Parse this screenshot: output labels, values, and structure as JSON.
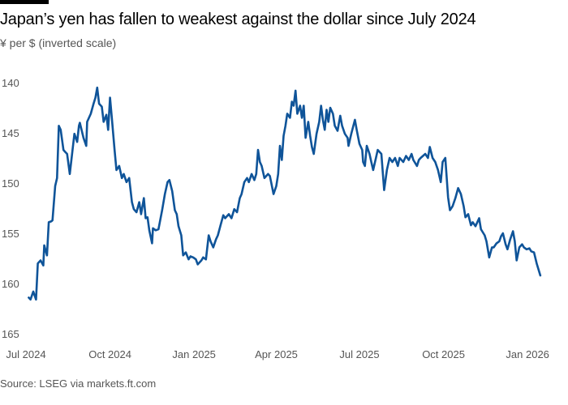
{
  "header": {
    "title": "Japan’s yen has fallen to weakest against the dollar since July 2024",
    "subtitle": "¥ per $ (inverted scale)"
  },
  "footer": {
    "source": "Source: LSEG via markets.ft.com"
  },
  "chart_data": {
    "type": "line",
    "title": "Japan’s yen has fallen to weakest against the dollar since July 2024",
    "ylabel": "¥ per $ (inverted scale)",
    "xlabel": "",
    "x_units": "days since 2024-07-01",
    "ylim": [
      140,
      165
    ],
    "y_inverted": true,
    "yticks": [
      140,
      145,
      150,
      155,
      160,
      165
    ],
    "xticks": [
      {
        "label": "Jul 2024",
        "day": 0
      },
      {
        "label": "Oct 2024",
        "day": 92
      },
      {
        "label": "Jan 2025",
        "day": 184
      },
      {
        "label": "Apr 2025",
        "day": 274
      },
      {
        "label": "Jul 2025",
        "day": 365
      },
      {
        "label": "Oct 2025",
        "day": 457
      },
      {
        "label": "Jan 2026",
        "day": 549
      }
    ],
    "grid": false,
    "line_color": "#0f5499",
    "series": [
      {
        "name": "¥ per $",
        "points": [
          [
            3,
            161.4
          ],
          [
            5,
            161.6
          ],
          [
            8,
            160.8
          ],
          [
            11,
            161.6
          ],
          [
            13,
            158.0
          ],
          [
            16,
            157.7
          ],
          [
            19,
            158.2
          ],
          [
            20,
            156.2
          ],
          [
            23,
            157.2
          ],
          [
            25,
            153.9
          ],
          [
            28,
            153.8
          ],
          [
            29,
            153.7
          ],
          [
            32,
            150.3
          ],
          [
            34,
            149.5
          ],
          [
            36,
            144.3
          ],
          [
            38,
            144.7
          ],
          [
            41,
            146.7
          ],
          [
            43,
            146.9
          ],
          [
            45,
            147.1
          ],
          [
            48,
            149.1
          ],
          [
            51,
            146.7
          ],
          [
            53,
            145.1
          ],
          [
            56,
            145.9
          ],
          [
            58,
            144.3
          ],
          [
            59,
            144.0
          ],
          [
            63,
            145.5
          ],
          [
            66,
            146.3
          ],
          [
            67,
            143.9
          ],
          [
            71,
            143.1
          ],
          [
            74,
            142.1
          ],
          [
            76,
            141.5
          ],
          [
            78,
            140.5
          ],
          [
            80,
            142.1
          ],
          [
            83,
            142.4
          ],
          [
            85,
            143.9
          ],
          [
            88,
            143.2
          ],
          [
            90,
            144.7
          ],
          [
            92,
            141.5
          ],
          [
            94,
            143.5
          ],
          [
            97,
            146.7
          ],
          [
            99,
            148.7
          ],
          [
            102,
            148.3
          ],
          [
            105,
            149.5
          ],
          [
            107,
            149.1
          ],
          [
            110,
            149.9
          ],
          [
            113,
            149.5
          ],
          [
            116,
            151.9
          ],
          [
            118,
            152.6
          ],
          [
            121,
            152.9
          ],
          [
            124,
            151.9
          ],
          [
            126,
            153.1
          ],
          [
            129,
            151.5
          ],
          [
            131,
            153.5
          ],
          [
            133,
            153.4
          ],
          [
            135,
            154.7
          ],
          [
            138,
            156.0
          ],
          [
            139,
            154.5
          ],
          [
            142,
            154.7
          ],
          [
            145,
            154.6
          ],
          [
            149,
            152.7
          ],
          [
            152,
            151.1
          ],
          [
            155,
            149.9
          ],
          [
            157,
            149.7
          ],
          [
            160,
            150.8
          ],
          [
            163,
            152.7
          ],
          [
            165,
            153.1
          ],
          [
            167,
            154.3
          ],
          [
            170,
            155.2
          ],
          [
            172,
            157.2
          ],
          [
            175,
            156.9
          ],
          [
            178,
            157.6
          ],
          [
            180,
            157.3
          ],
          [
            183,
            157.4
          ],
          [
            186,
            157.6
          ],
          [
            188,
            158.1
          ],
          [
            192,
            157.7
          ],
          [
            194,
            157.4
          ],
          [
            197,
            157.6
          ],
          [
            200,
            155.2
          ],
          [
            202,
            155.8
          ],
          [
            205,
            156.4
          ],
          [
            208,
            155.6
          ],
          [
            210,
            155.2
          ],
          [
            213,
            154.2
          ],
          [
            216,
            153.2
          ],
          [
            218,
            153.5
          ],
          [
            222,
            153.1
          ],
          [
            225,
            153.5
          ],
          [
            228,
            152.6
          ],
          [
            231,
            152.9
          ],
          [
            234,
            151.5
          ],
          [
            236,
            151.1
          ],
          [
            239,
            149.9
          ],
          [
            242,
            149.5
          ],
          [
            244,
            149.9
          ],
          [
            247,
            149.1
          ],
          [
            250,
            149.7
          ],
          [
            252,
            149.1
          ],
          [
            254,
            146.7
          ],
          [
            256,
            147.9
          ],
          [
            258,
            148.3
          ],
          [
            261,
            149.5
          ],
          [
            265,
            149.1
          ],
          [
            267,
            149.3
          ],
          [
            271,
            151.1
          ],
          [
            274,
            150.3
          ],
          [
            276,
            149.1
          ],
          [
            278,
            146.3
          ],
          [
            280,
            147.7
          ],
          [
            282,
            145.3
          ],
          [
            284,
            144.3
          ],
          [
            286,
            143.1
          ],
          [
            289,
            143.5
          ],
          [
            291,
            141.9
          ],
          [
            293,
            142.3
          ],
          [
            295,
            140.8
          ],
          [
            297,
            143.1
          ],
          [
            300,
            142.3
          ],
          [
            302,
            143.5
          ],
          [
            304,
            142.3
          ],
          [
            306,
            145.5
          ],
          [
            309,
            143.9
          ],
          [
            311,
            145.3
          ],
          [
            313,
            146.4
          ],
          [
            315,
            147.1
          ],
          [
            318,
            145.1
          ],
          [
            321,
            143.9
          ],
          [
            323,
            142.3
          ],
          [
            325,
            143.7
          ],
          [
            327,
            144.7
          ],
          [
            329,
            142.7
          ],
          [
            331,
            143.9
          ],
          [
            333,
            142.5
          ],
          [
            336,
            143.1
          ],
          [
            338,
            144.3
          ],
          [
            341,
            144.8
          ],
          [
            344,
            143.3
          ],
          [
            346,
            144.3
          ],
          [
            349,
            145.1
          ],
          [
            352,
            145.5
          ],
          [
            353,
            146.3
          ],
          [
            356,
            145.1
          ],
          [
            360,
            143.7
          ],
          [
            362,
            144.7
          ],
          [
            365,
            146.1
          ],
          [
            368,
            146.7
          ],
          [
            369,
            147.9
          ],
          [
            371,
            148.3
          ],
          [
            373,
            146.3
          ],
          [
            376,
            147.1
          ],
          [
            378,
            147.9
          ],
          [
            380,
            148.7
          ],
          [
            383,
            147.5
          ],
          [
            385,
            146.7
          ],
          [
            389,
            147.1
          ],
          [
            392,
            150.7
          ],
          [
            395,
            148.7
          ],
          [
            398,
            147.5
          ],
          [
            401,
            147.9
          ],
          [
            404,
            147.5
          ],
          [
            407,
            148.3
          ],
          [
            409,
            147.5
          ],
          [
            413,
            147.9
          ],
          [
            416,
            147.3
          ],
          [
            419,
            147.7
          ],
          [
            422,
            147.1
          ],
          [
            424,
            147.7
          ],
          [
            428,
            148.3
          ],
          [
            430,
            147.7
          ],
          [
            432,
            147.5
          ],
          [
            437,
            147.1
          ],
          [
            440,
            147.5
          ],
          [
            442,
            146.4
          ],
          [
            445,
            147.5
          ],
          [
            448,
            147.9
          ],
          [
            451,
            148.7
          ],
          [
            454,
            149.9
          ],
          [
            456,
            147.9
          ],
          [
            459,
            147.5
          ],
          [
            462,
            151.4
          ],
          [
            464,
            152.7
          ],
          [
            467,
            152.3
          ],
          [
            470,
            151.5
          ],
          [
            473,
            150.5
          ],
          [
            476,
            151.1
          ],
          [
            479,
            152.3
          ],
          [
            481,
            153.4
          ],
          [
            484,
            153.1
          ],
          [
            487,
            154.2
          ],
          [
            489,
            153.9
          ],
          [
            492,
            154.3
          ],
          [
            496,
            153.5
          ],
          [
            498,
            154.6
          ],
          [
            502,
            155.2
          ],
          [
            504,
            155.8
          ],
          [
            507,
            157.4
          ],
          [
            510,
            156.4
          ],
          [
            512,
            156.4
          ],
          [
            515,
            156.0
          ],
          [
            518,
            155.8
          ],
          [
            520,
            155.3
          ],
          [
            522,
            155.0
          ],
          [
            525,
            156.1
          ],
          [
            527,
            156.6
          ],
          [
            530,
            155.6
          ],
          [
            533,
            154.8
          ],
          [
            535,
            155.8
          ],
          [
            537,
            157.7
          ],
          [
            540,
            156.4
          ],
          [
            543,
            156.1
          ],
          [
            545,
            156.4
          ],
          [
            548,
            156.6
          ],
          [
            551,
            156.5
          ],
          [
            553,
            156.8
          ],
          [
            556,
            156.9
          ],
          [
            559,
            158.0
          ],
          [
            563,
            159.2
          ]
        ]
      }
    ]
  }
}
